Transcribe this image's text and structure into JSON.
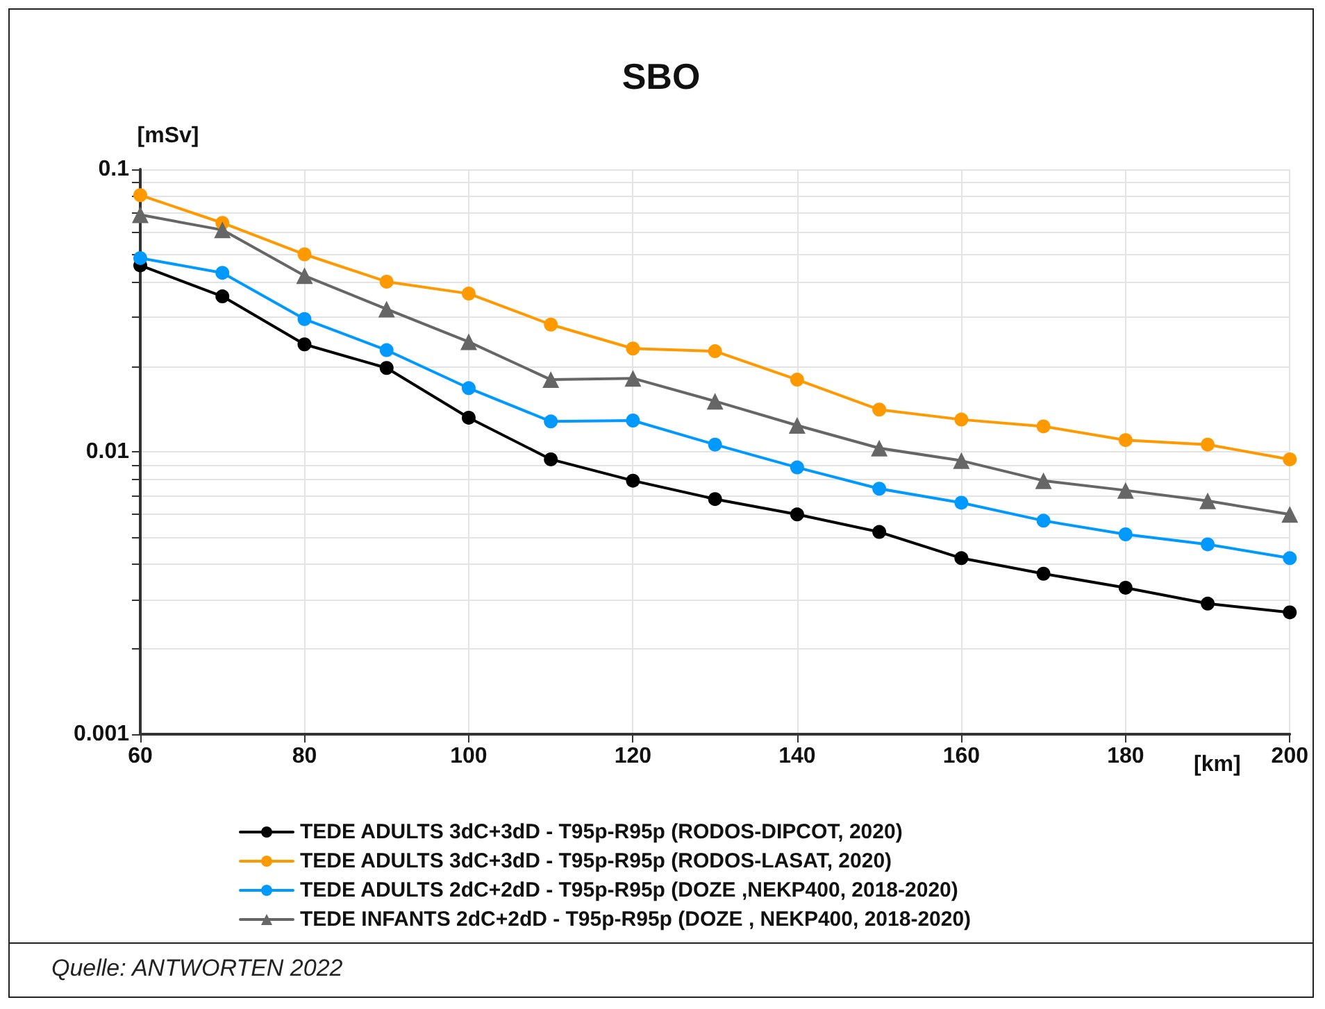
{
  "chart_data": {
    "type": "line",
    "title": "SBO",
    "ylabel": "[mSv]",
    "xlabel": "[km]",
    "log": "y",
    "x": [
      60,
      70,
      80,
      90,
      100,
      110,
      120,
      130,
      140,
      150,
      160,
      170,
      180,
      190,
      200
    ],
    "series": [
      {
        "name": "TEDE ADULTS 3dC+3dD - T95p-R95p (RODOS-DIPCOT, 2020)",
        "color": "#000000",
        "marker": "circle",
        "values": [
          0.0457,
          0.0355,
          0.024,
          0.0198,
          0.0132,
          0.0094,
          0.0079,
          0.0068,
          0.006,
          0.0052,
          0.0042,
          0.0037,
          0.0033,
          0.0029,
          0.0027
        ]
      },
      {
        "name": "TEDE ADULTS 3dC+3dD - T95p-R95p (RODOS-LASAT, 2020)",
        "color": "#ff9900",
        "marker": "circle",
        "values": [
          0.081,
          0.0646,
          0.05,
          0.04,
          0.0363,
          0.0282,
          0.0232,
          0.0227,
          0.018,
          0.0141,
          0.013,
          0.0123,
          0.011,
          0.0106,
          0.0094
        ]
      },
      {
        "name": "TEDE ADULTS 2dC+2dD - T95p-R95p (DOZE ,NEKP400, 2018-2020)",
        "color": "#0099ff",
        "marker": "circle",
        "values": [
          0.0485,
          0.043,
          0.0295,
          0.0229,
          0.0168,
          0.0128,
          0.0129,
          0.0106,
          0.0088,
          0.0074,
          0.0066,
          0.0057,
          0.0051,
          0.0047,
          0.0042
        ]
      },
      {
        "name": "TEDE INFANTS 2dC+2dD - T95p-R95p (DOZE , NEKP400, 2018-2020)",
        "color": "#666666",
        "marker": "triangle",
        "values": [
          0.069,
          0.061,
          0.042,
          0.032,
          0.0245,
          0.018,
          0.0182,
          0.0151,
          0.0124,
          0.0103,
          0.0093,
          0.0079,
          0.0073,
          0.0067,
          0.006
        ]
      }
    ],
    "xlim": [
      60,
      200
    ],
    "xticks": [
      60,
      80,
      100,
      120,
      140,
      160,
      180,
      200
    ],
    "ylim": [
      0.001,
      0.1
    ],
    "yticks": [
      0.001,
      {
        "value": 0.002,
        "label": null
      },
      {
        "value": 0.003,
        "label": null
      },
      {
        "value": 0.004,
        "label": null
      },
      {
        "value": 0.005,
        "label": null
      },
      {
        "value": 0.006,
        "label": null
      },
      {
        "value": 0.007,
        "label": null
      },
      {
        "value": 0.008,
        "label": null
      },
      {
        "value": 0.009,
        "label": null
      },
      0.01,
      {
        "value": 0.02,
        "label": null
      },
      {
        "value": 0.03,
        "label": null
      },
      {
        "value": 0.04,
        "label": null
      },
      {
        "value": 0.05,
        "label": null
      },
      {
        "value": 0.06,
        "label": null
      },
      {
        "value": 0.07,
        "label": null
      },
      {
        "value": 0.08,
        "label": null
      },
      {
        "value": 0.09,
        "label": null
      },
      0.1
    ],
    "grid": true,
    "legend": "bottom",
    "line_style": "solid",
    "annotations": [
      "Quelle: ANTWORTEN 2022"
    ]
  }
}
